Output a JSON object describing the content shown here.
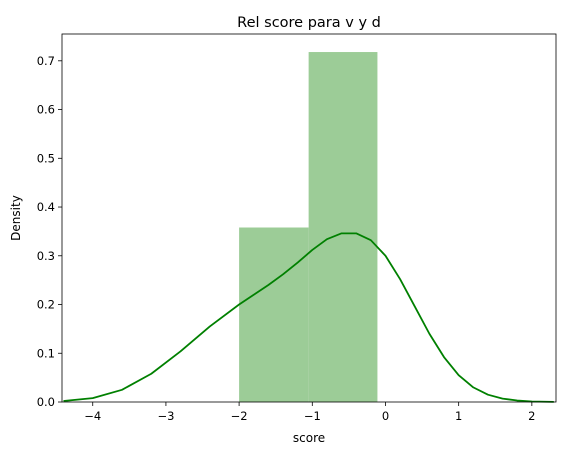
{
  "chart_data": {
    "type": "bar",
    "title": "Rel score para v y d",
    "xlabel": "score",
    "ylabel": "Density",
    "xlim": [
      -4.42,
      2.33
    ],
    "ylim": [
      0,
      0.755
    ],
    "x_ticks": [
      -4,
      -3,
      -2,
      -1,
      0,
      1,
      2
    ],
    "y_ticks": [
      0.0,
      0.1,
      0.2,
      0.3,
      0.4,
      0.5,
      0.6,
      0.7
    ],
    "histogram": {
      "bins": [
        {
          "x0": -2.0,
          "x1": -1.05,
          "density": 0.358
        },
        {
          "x0": -1.05,
          "x1": -0.11,
          "density": 0.718
        }
      ],
      "color": "#9ccc97"
    },
    "kde": {
      "color": "#008000",
      "x": [
        -4.4,
        -4.0,
        -3.6,
        -3.2,
        -2.8,
        -2.4,
        -2.0,
        -1.8,
        -1.6,
        -1.4,
        -1.2,
        -1.0,
        -0.8,
        -0.6,
        -0.4,
        -0.2,
        0.0,
        0.2,
        0.4,
        0.6,
        0.8,
        1.0,
        1.2,
        1.4,
        1.6,
        1.8,
        2.0,
        2.3
      ],
      "y": [
        0.002,
        0.008,
        0.025,
        0.058,
        0.104,
        0.155,
        0.2,
        0.22,
        0.24,
        0.262,
        0.286,
        0.312,
        0.334,
        0.346,
        0.346,
        0.332,
        0.3,
        0.252,
        0.196,
        0.14,
        0.092,
        0.055,
        0.03,
        0.015,
        0.007,
        0.003,
        0.001,
        0.0003
      ]
    },
    "grid": false,
    "legend": "none"
  }
}
